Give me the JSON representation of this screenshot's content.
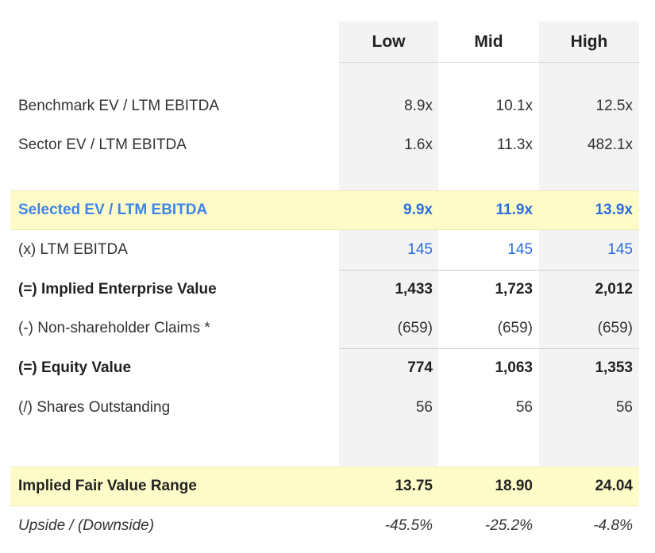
{
  "columns": [
    "Low",
    "Mid",
    "High"
  ],
  "rows": {
    "benchmark": {
      "label": "Benchmark EV / LTM EBITDA",
      "values": [
        "8.9x",
        "10.1x",
        "12.5x"
      ]
    },
    "sector": {
      "label": "Sector EV / LTM EBITDA",
      "values": [
        "1.6x",
        "11.3x",
        "482.1x"
      ]
    },
    "selected": {
      "label": "Selected EV / LTM EBITDA",
      "values": [
        "9.9x",
        "11.9x",
        "13.9x"
      ]
    },
    "ebitda": {
      "label": "(x) LTM EBITDA",
      "values": [
        "145",
        "145",
        "145"
      ]
    },
    "implied_ev": {
      "label": "(=) Implied Enterprise Value",
      "values": [
        "1,433",
        "1,723",
        "2,012"
      ]
    },
    "claims": {
      "label": "(-) Non-shareholder Claims *",
      "values": [
        "(659)",
        "(659)",
        "(659)"
      ]
    },
    "equity": {
      "label": "(=) Equity Value",
      "values": [
        "774",
        "1,063",
        "1,353"
      ]
    },
    "shares": {
      "label": "(/) Shares Outstanding",
      "values": [
        "56",
        "56",
        "56"
      ]
    },
    "fair_value": {
      "label": "Implied Fair Value Range",
      "values": [
        "13.75",
        "18.90",
        "24.04"
      ]
    },
    "upside": {
      "label": "Upside / (Downside)",
      "values": [
        "-45.5%",
        "-25.2%",
        "-4.8%"
      ]
    }
  },
  "colors": {
    "highlight": "#fdfcc9",
    "column_shade": "#f3f3f3",
    "accent_blue": "#3f84ea"
  }
}
